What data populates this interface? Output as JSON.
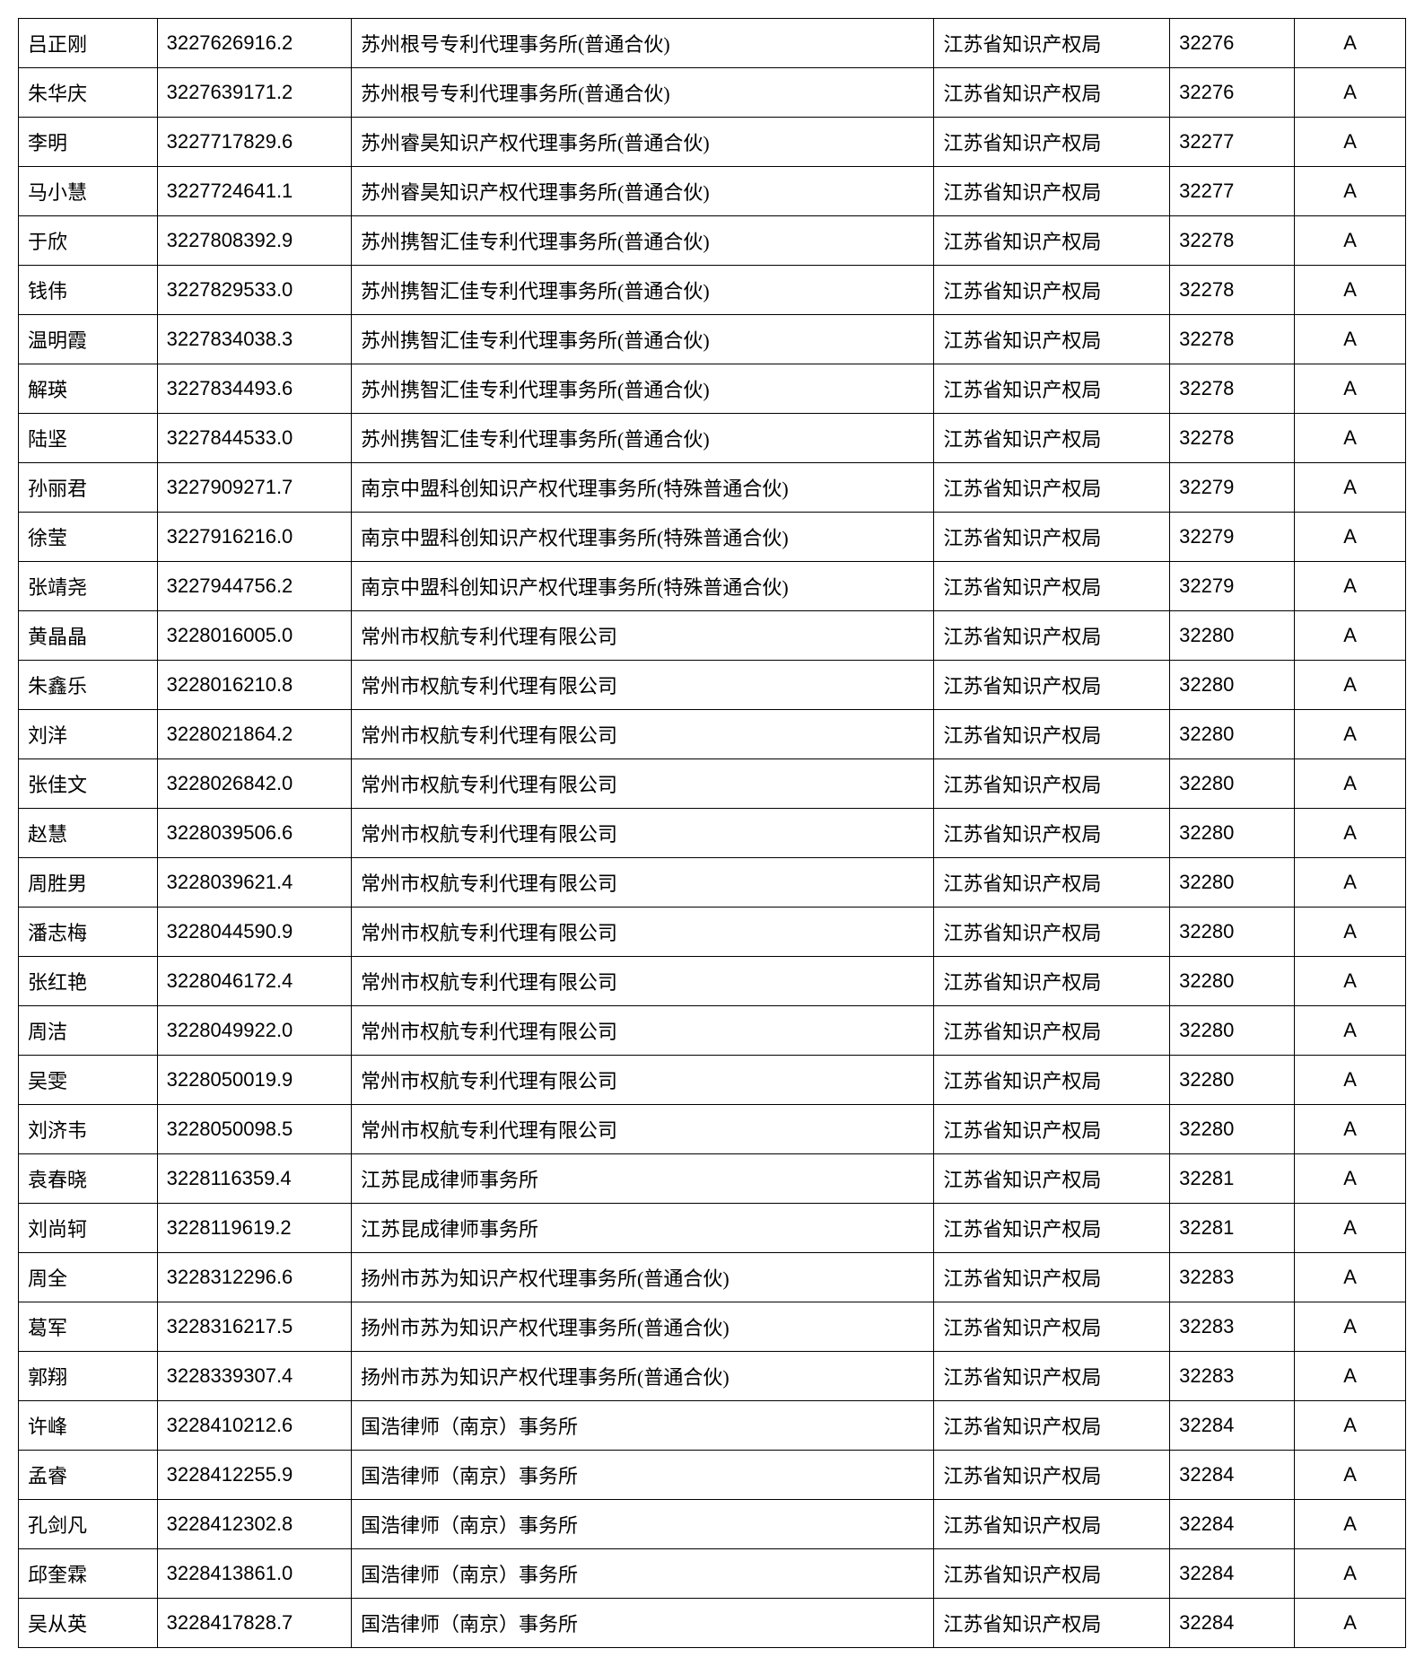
{
  "table": {
    "columns": [
      {
        "key": "name",
        "class": "col-name"
      },
      {
        "key": "number",
        "class": "col-number"
      },
      {
        "key": "agency",
        "class": "col-agency"
      },
      {
        "key": "bureau",
        "class": "col-bureau"
      },
      {
        "key": "code",
        "class": "col-code"
      },
      {
        "key": "grade",
        "class": "col-grade"
      }
    ],
    "rows": [
      {
        "name": "吕正刚",
        "number": "3227626916.2",
        "agency": "苏州根号专利代理事务所(普通合伙)",
        "bureau": "江苏省知识产权局",
        "code": "32276",
        "grade": "A"
      },
      {
        "name": "朱华庆",
        "number": "3227639171.2",
        "agency": "苏州根号专利代理事务所(普通合伙)",
        "bureau": "江苏省知识产权局",
        "code": "32276",
        "grade": "A"
      },
      {
        "name": "李明",
        "number": "3227717829.6",
        "agency": "苏州睿昊知识产权代理事务所(普通合伙)",
        "bureau": "江苏省知识产权局",
        "code": "32277",
        "grade": "A"
      },
      {
        "name": "马小慧",
        "number": "3227724641.1",
        "agency": "苏州睿昊知识产权代理事务所(普通合伙)",
        "bureau": "江苏省知识产权局",
        "code": "32277",
        "grade": "A"
      },
      {
        "name": "于欣",
        "number": "3227808392.9",
        "agency": "苏州携智汇佳专利代理事务所(普通合伙)",
        "bureau": "江苏省知识产权局",
        "code": "32278",
        "grade": "A"
      },
      {
        "name": "钱伟",
        "number": "3227829533.0",
        "agency": "苏州携智汇佳专利代理事务所(普通合伙)",
        "bureau": "江苏省知识产权局",
        "code": "32278",
        "grade": "A"
      },
      {
        "name": "温明霞",
        "number": "3227834038.3",
        "agency": "苏州携智汇佳专利代理事务所(普通合伙)",
        "bureau": "江苏省知识产权局",
        "code": "32278",
        "grade": "A"
      },
      {
        "name": "解瑛",
        "number": "3227834493.6",
        "agency": "苏州携智汇佳专利代理事务所(普通合伙)",
        "bureau": "江苏省知识产权局",
        "code": "32278",
        "grade": "A"
      },
      {
        "name": "陆坚",
        "number": "3227844533.0",
        "agency": "苏州携智汇佳专利代理事务所(普通合伙)",
        "bureau": "江苏省知识产权局",
        "code": "32278",
        "grade": "A"
      },
      {
        "name": "孙丽君",
        "number": "3227909271.7",
        "agency": "南京中盟科创知识产权代理事务所(特殊普通合伙)",
        "bureau": "江苏省知识产权局",
        "code": "32279",
        "grade": "A"
      },
      {
        "name": "徐莹",
        "number": "3227916216.0",
        "agency": "南京中盟科创知识产权代理事务所(特殊普通合伙)",
        "bureau": "江苏省知识产权局",
        "code": "32279",
        "grade": "A"
      },
      {
        "name": "张靖尧",
        "number": "3227944756.2",
        "agency": "南京中盟科创知识产权代理事务所(特殊普通合伙)",
        "bureau": "江苏省知识产权局",
        "code": "32279",
        "grade": "A"
      },
      {
        "name": "黄晶晶",
        "number": "3228016005.0",
        "agency": "常州市权航专利代理有限公司",
        "bureau": "江苏省知识产权局",
        "code": "32280",
        "grade": "A"
      },
      {
        "name": "朱鑫乐",
        "number": "3228016210.8",
        "agency": "常州市权航专利代理有限公司",
        "bureau": "江苏省知识产权局",
        "code": "32280",
        "grade": "A"
      },
      {
        "name": "刘洋",
        "number": "3228021864.2",
        "agency": "常州市权航专利代理有限公司",
        "bureau": "江苏省知识产权局",
        "code": "32280",
        "grade": "A"
      },
      {
        "name": "张佳文",
        "number": "3228026842.0",
        "agency": "常州市权航专利代理有限公司",
        "bureau": "江苏省知识产权局",
        "code": "32280",
        "grade": "A"
      },
      {
        "name": "赵慧",
        "number": "3228039506.6",
        "agency": "常州市权航专利代理有限公司",
        "bureau": "江苏省知识产权局",
        "code": "32280",
        "grade": "A"
      },
      {
        "name": "周胜男",
        "number": "3228039621.4",
        "agency": "常州市权航专利代理有限公司",
        "bureau": "江苏省知识产权局",
        "code": "32280",
        "grade": "A"
      },
      {
        "name": "潘志梅",
        "number": "3228044590.9",
        "agency": "常州市权航专利代理有限公司",
        "bureau": "江苏省知识产权局",
        "code": "32280",
        "grade": "A"
      },
      {
        "name": "张红艳",
        "number": "3228046172.4",
        "agency": "常州市权航专利代理有限公司",
        "bureau": "江苏省知识产权局",
        "code": "32280",
        "grade": "A"
      },
      {
        "name": "周洁",
        "number": "3228049922.0",
        "agency": "常州市权航专利代理有限公司",
        "bureau": "江苏省知识产权局",
        "code": "32280",
        "grade": "A"
      },
      {
        "name": "吴雯",
        "number": "3228050019.9",
        "agency": "常州市权航专利代理有限公司",
        "bureau": "江苏省知识产权局",
        "code": "32280",
        "grade": "A"
      },
      {
        "name": "刘济韦",
        "number": "3228050098.5",
        "agency": "常州市权航专利代理有限公司",
        "bureau": "江苏省知识产权局",
        "code": "32280",
        "grade": "A"
      },
      {
        "name": "袁春晓",
        "number": "3228116359.4",
        "agency": "江苏昆成律师事务所",
        "bureau": "江苏省知识产权局",
        "code": "32281",
        "grade": "A"
      },
      {
        "name": "刘尚轲",
        "number": "3228119619.2",
        "agency": "江苏昆成律师事务所",
        "bureau": "江苏省知识产权局",
        "code": "32281",
        "grade": "A"
      },
      {
        "name": "周全",
        "number": "3228312296.6",
        "agency": "扬州市苏为知识产权代理事务所(普通合伙)",
        "bureau": "江苏省知识产权局",
        "code": "32283",
        "grade": "A"
      },
      {
        "name": "葛军",
        "number": "3228316217.5",
        "agency": "扬州市苏为知识产权代理事务所(普通合伙)",
        "bureau": "江苏省知识产权局",
        "code": "32283",
        "grade": "A"
      },
      {
        "name": "郭翔",
        "number": "3228339307.4",
        "agency": "扬州市苏为知识产权代理事务所(普通合伙)",
        "bureau": "江苏省知识产权局",
        "code": "32283",
        "grade": "A"
      },
      {
        "name": "许峰",
        "number": "3228410212.6",
        "agency": "国浩律师（南京）事务所",
        "bureau": "江苏省知识产权局",
        "code": "32284",
        "grade": "A"
      },
      {
        "name": "孟睿",
        "number": "3228412255.9",
        "agency": "国浩律师（南京）事务所",
        "bureau": "江苏省知识产权局",
        "code": "32284",
        "grade": "A"
      },
      {
        "name": "孔剑凡",
        "number": "3228412302.8",
        "agency": "国浩律师（南京）事务所",
        "bureau": "江苏省知识产权局",
        "code": "32284",
        "grade": "A"
      },
      {
        "name": "邱奎霖",
        "number": "3228413861.0",
        "agency": "国浩律师（南京）事务所",
        "bureau": "江苏省知识产权局",
        "code": "32284",
        "grade": "A"
      },
      {
        "name": "吴从英",
        "number": "3228417828.7",
        "agency": "国浩律师（南京）事务所",
        "bureau": "江苏省知识产权局",
        "code": "32284",
        "grade": "A"
      }
    ]
  },
  "styling": {
    "border_color": "#000000",
    "background_color": "#ffffff",
    "text_color": "#000000",
    "font_size": 22,
    "cell_padding": "11px 10px",
    "column_widths": [
      "10%",
      "14%",
      "42%",
      "17%",
      "9%",
      "8%"
    ]
  }
}
